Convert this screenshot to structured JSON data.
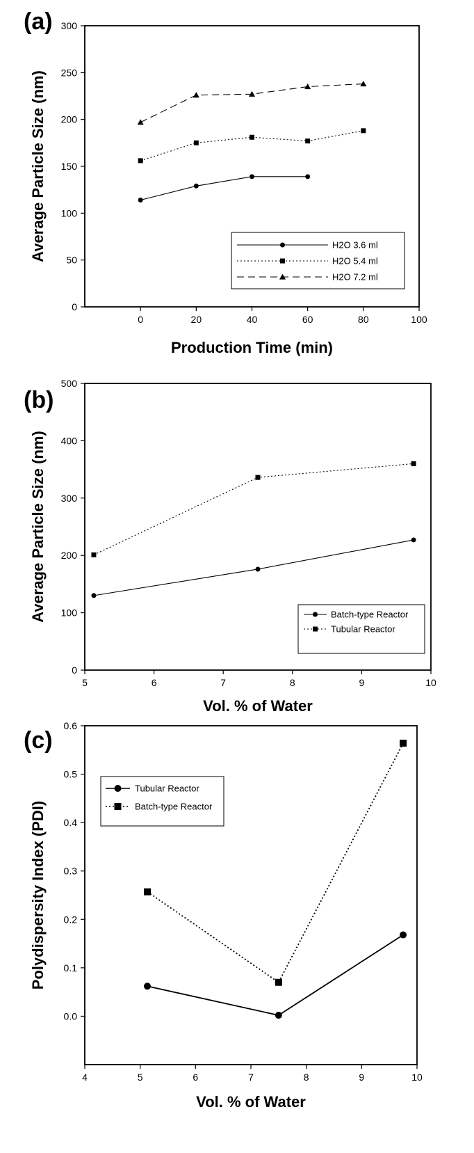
{
  "chart_data": [
    {
      "panel": "(a)",
      "type": "line",
      "xlabel": "Production Time (min)",
      "ylabel": "Average Particle Size (nm)",
      "xlim": [
        -20,
        100
      ],
      "ylim": [
        0,
        300
      ],
      "xticks": [
        0,
        20,
        40,
        60,
        80,
        100
      ],
      "yticks": [
        0,
        50,
        100,
        150,
        200,
        250,
        300
      ],
      "grid": false,
      "legend_position": "bottom-right",
      "series": [
        {
          "name": "H2O 3.6 ml",
          "marker": "circle",
          "line": "solid",
          "x": [
            0,
            20,
            40,
            60
          ],
          "y": [
            114,
            129,
            139,
            139
          ]
        },
        {
          "name": "H2O 5.4 ml",
          "marker": "square",
          "line": "dotted",
          "x": [
            0,
            20,
            40,
            60,
            80
          ],
          "y": [
            156,
            175,
            181,
            177,
            188
          ]
        },
        {
          "name": "H2O 7.2 ml",
          "marker": "triangle",
          "line": "dashed",
          "x": [
            0,
            20,
            40,
            60,
            80
          ],
          "y": [
            197,
            226,
            227,
            235,
            238
          ]
        }
      ]
    },
    {
      "panel": "(b)",
      "type": "line",
      "xlabel": "Vol. % of Water",
      "ylabel": "Average Particle Size (nm)",
      "xlim": [
        5,
        10
      ],
      "ylim": [
        0,
        500
      ],
      "xticks": [
        5,
        6,
        7,
        8,
        9,
        10
      ],
      "yticks": [
        0,
        100,
        200,
        300,
        400,
        500
      ],
      "grid": false,
      "legend_position": "bottom-right",
      "series": [
        {
          "name": "Batch-type Reactor",
          "marker": "circle",
          "line": "solid",
          "x": [
            5.13,
            7.5,
            9.75
          ],
          "y": [
            130,
            176,
            227
          ]
        },
        {
          "name": "Tubular Reactor",
          "marker": "square",
          "line": "dotted",
          "x": [
            5.13,
            7.5,
            9.75
          ],
          "y": [
            201,
            336,
            360
          ]
        }
      ]
    },
    {
      "panel": "(c)",
      "type": "line",
      "xlabel": "Vol. % of Water",
      "ylabel": "Polydispersity Index (PDI)",
      "xlim": [
        4,
        10
      ],
      "ylim": [
        -0.1,
        0.6
      ],
      "xticks": [
        4,
        5,
        6,
        7,
        8,
        9,
        10
      ],
      "yticks": [
        0.0,
        0.1,
        0.2,
        0.3,
        0.4,
        0.5,
        0.6
      ],
      "yticklabels": [
        "0.0",
        "0.1",
        "0.2",
        "0.3",
        "0.4",
        "0.5",
        "0.6"
      ],
      "grid": false,
      "legend_position": "top-left",
      "series": [
        {
          "name": "Tubular Reactor",
          "marker": "circle",
          "line": "solid",
          "x": [
            5.13,
            7.5,
            9.75
          ],
          "y": [
            0.062,
            0.002,
            0.168
          ]
        },
        {
          "name": "Batch-type Reactor",
          "marker": "square",
          "line": "dotted",
          "x": [
            5.13,
            7.5,
            9.75
          ],
          "y": [
            0.257,
            0.07,
            0.564
          ]
        }
      ]
    }
  ],
  "colors": {
    "line": "#000000",
    "background": "#ffffff"
  }
}
